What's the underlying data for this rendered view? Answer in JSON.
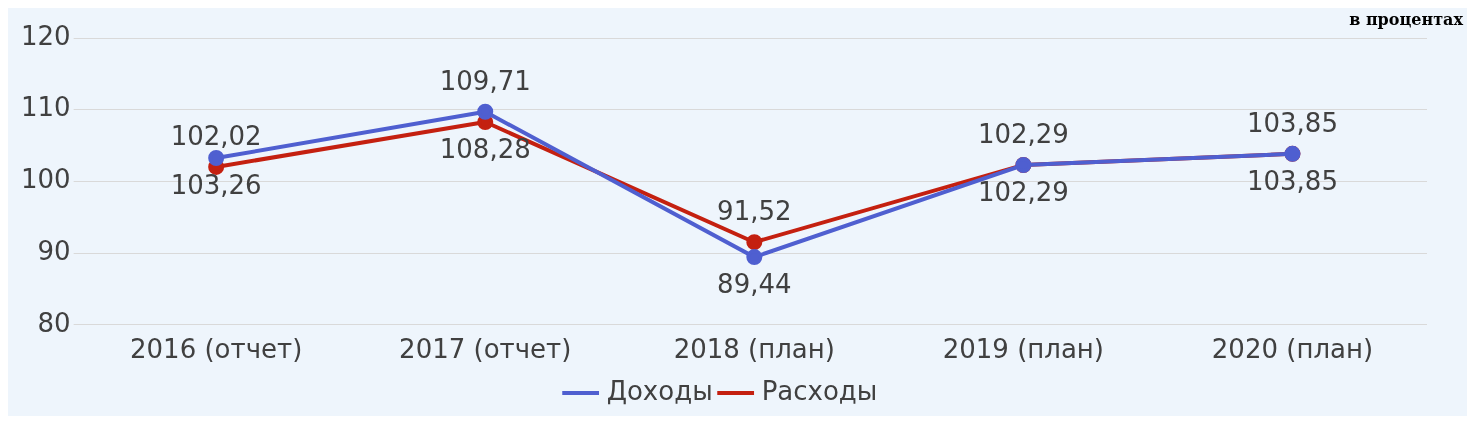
{
  "chart_data": {
    "type": "line",
    "categories": [
      "2016 (отчет)",
      "2017 (отчет)",
      "2018 (план)",
      "2019 (план)",
      "2020 (план)"
    ],
    "series": [
      {
        "name": "Доходы",
        "color": "#4f5fd0",
        "values": [
          103.26,
          109.71,
          89.44,
          102.29,
          103.85
        ],
        "value_labels": [
          "103,26",
          "109,71",
          "89,44",
          "102,29",
          "103,85"
        ]
      },
      {
        "name": "Расходы",
        "color": "#c42010",
        "values": [
          102.02,
          108.28,
          91.52,
          102.29,
          103.85
        ],
        "value_labels": [
          "102,02",
          "108,28",
          "91,52",
          "102,29",
          "103,85"
        ]
      }
    ],
    "ylim": [
      80,
      120
    ],
    "yticks": [
      80,
      90,
      100,
      110,
      120
    ],
    "grid": "y",
    "legend": "bottom",
    "marker": "circle",
    "line_style": "solid",
    "annotations": [
      "в процентах"
    ]
  }
}
